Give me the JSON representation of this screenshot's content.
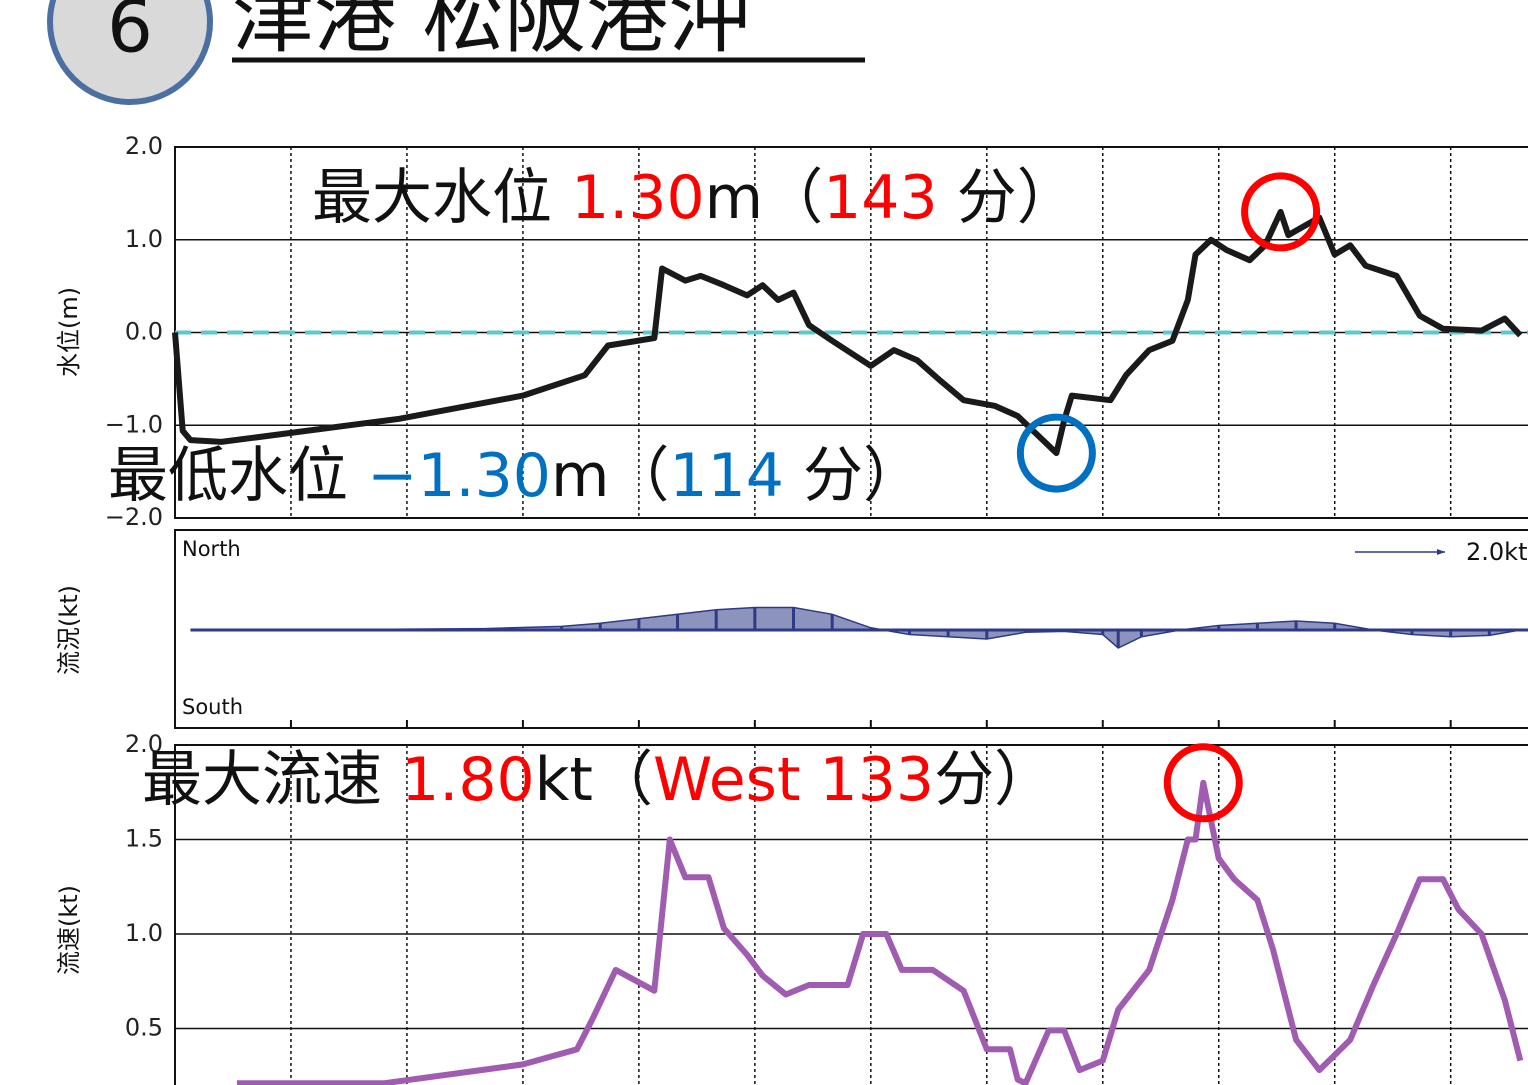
{
  "header": {
    "number": "6",
    "title": "津港 松阪港沖"
  },
  "chart_data": [
    {
      "type": "line",
      "ylabel": "水位(m)",
      "color": "#1a1a1a",
      "zero_line_color": "#5bc8d0",
      "xlim": [
        0,
        175
      ],
      "xticks": [
        15,
        30,
        45,
        60,
        75,
        90,
        105,
        120,
        135,
        150,
        165
      ],
      "ylim": [
        -2,
        2
      ],
      "yticks": [
        {
          "value": 2,
          "label": "2.0"
        },
        {
          "value": 1,
          "label": "1.0"
        },
        {
          "value": 0,
          "label": "0.0"
        },
        {
          "value": -1,
          "label": "−1.0"
        },
        {
          "value": -2,
          "label": "−2.0"
        }
      ],
      "x": [
        0,
        1,
        2,
        6,
        29,
        45,
        53,
        56,
        62,
        63,
        66,
        68,
        71,
        74,
        76,
        78,
        80,
        82,
        85,
        90,
        93,
        96,
        99,
        102,
        106,
        109,
        114,
        115,
        116,
        121,
        123,
        126,
        129,
        131,
        132,
        134,
        136,
        139,
        141,
        143,
        144,
        148,
        150,
        152,
        154,
        158,
        161,
        164,
        169,
        172,
        174
      ],
      "values": [
        0,
        -1.06,
        -1.16,
        -1.18,
        -0.93,
        -0.68,
        -0.46,
        -0.14,
        -0.06,
        0.69,
        0.56,
        0.61,
        0.51,
        0.4,
        0.51,
        0.35,
        0.43,
        0.08,
        -0.09,
        -0.36,
        -0.19,
        -0.3,
        -0.52,
        -0.73,
        -0.79,
        -0.9,
        -1.3,
        -0.95,
        -0.68,
        -0.73,
        -0.46,
        -0.19,
        -0.09,
        0.35,
        0.84,
        1.0,
        0.89,
        0.78,
        0.94,
        1.3,
        1.05,
        1.24,
        0.84,
        0.94,
        0.72,
        0.61,
        0.18,
        0.04,
        0.02,
        0.15,
        -0.03
      ],
      "annotations": [
        {
          "highlight_index": 39,
          "highlight_color": "#ff0000",
          "parts": [
            {
              "text": "最大水位  ",
              "color": "#111111"
            },
            {
              "text": "1.30",
              "color": "#ff0000"
            },
            {
              "text": "m（",
              "color": "#111111"
            },
            {
              "text": "143",
              "color": "#ff0000"
            },
            {
              "text": " 分）",
              "color": "#111111"
            }
          ]
        },
        {
          "highlight_index": 26,
          "highlight_color": "#0070c0",
          "parts": [
            {
              "text": "最低水位  ",
              "color": "#111111"
            },
            {
              "text": "−1.30",
              "color": "#0070c0"
            },
            {
              "text": "m（",
              "color": "#111111"
            },
            {
              "text": "114",
              "color": "#0070c0"
            },
            {
              "text": " 分）",
              "color": "#111111"
            }
          ]
        }
      ]
    },
    {
      "type": "quiver",
      "ylabel": "流況(kt)",
      "color": "#2e3a87",
      "north_label": "North",
      "south_label": "South",
      "reference": {
        "value": 2.0,
        "label": "2.0kt"
      },
      "xlim": [
        0,
        175
      ],
      "xticks": [
        15,
        30,
        45,
        60,
        75,
        90,
        105,
        120,
        135,
        150,
        165
      ],
      "x": [
        2,
        10,
        20,
        30,
        40,
        50,
        55,
        60,
        65,
        70,
        75,
        80,
        85,
        90,
        95,
        100,
        105,
        110,
        115,
        120,
        122,
        125,
        130,
        135,
        140,
        145,
        150,
        155,
        160,
        165,
        170,
        174
      ],
      "values": [
        0,
        0,
        0,
        0.02,
        0.03,
        0.08,
        0.15,
        0.25,
        0.35,
        0.45,
        0.5,
        0.5,
        0.35,
        0.05,
        -0.1,
        -0.15,
        -0.2,
        -0.05,
        -0.03,
        -0.1,
        -0.4,
        -0.15,
        0,
        0.1,
        0.15,
        0.2,
        0.15,
        0,
        -0.1,
        -0.15,
        -0.12,
        0
      ]
    },
    {
      "type": "line",
      "ylabel": "流速(kt)",
      "color": "#a05cb0",
      "xlim": [
        0,
        175
      ],
      "xticks": [
        15,
        30,
        45,
        60,
        75,
        90,
        105,
        120,
        135,
        150,
        165
      ],
      "ylim": [
        0,
        2
      ],
      "yticks": [
        {
          "value": 0.5,
          "label": "0.5"
        },
        {
          "value": 1,
          "label": "1.0"
        },
        {
          "value": 1.5,
          "label": "1.5"
        },
        {
          "value": 2,
          "label": "2.0"
        }
      ],
      "x": [
        8,
        27,
        45,
        52,
        54,
        57,
        62,
        64,
        66,
        69,
        71,
        74,
        76,
        79,
        82,
        87,
        89,
        92,
        94,
        98,
        102,
        105,
        108,
        109,
        110,
        113,
        115,
        117,
        120,
        122,
        126,
        129,
        131,
        132,
        133,
        135,
        137,
        140,
        142,
        145,
        148,
        152,
        155,
        158,
        161,
        164,
        166,
        169,
        172,
        174
      ],
      "values": [
        0.21,
        0.21,
        0.31,
        0.39,
        0.55,
        0.81,
        0.7,
        1.5,
        1.3,
        1.3,
        1.03,
        0.89,
        0.78,
        0.68,
        0.73,
        0.73,
        1.0,
        1.0,
        0.81,
        0.81,
        0.7,
        0.39,
        0.39,
        0.23,
        0.21,
        0.49,
        0.49,
        0.28,
        0.33,
        0.6,
        0.81,
        1.18,
        1.5,
        1.5,
        1.8,
        1.4,
        1.29,
        1.18,
        0.92,
        0.44,
        0.28,
        0.44,
        0.73,
        1.0,
        1.29,
        1.29,
        1.13,
        1.0,
        0.65,
        0.33
      ],
      "annotations": [
        {
          "highlight_index": 34,
          "highlight_color": "#ff0000",
          "parts": [
            {
              "text": "最大流速  ",
              "color": "#111111"
            },
            {
              "text": "1.80",
              "color": "#ff0000"
            },
            {
              "text": "kt（",
              "color": "#111111"
            },
            {
              "text": "West 133",
              "color": "#ff0000"
            },
            {
              "text": "分）",
              "color": "#111111"
            }
          ]
        }
      ]
    }
  ]
}
